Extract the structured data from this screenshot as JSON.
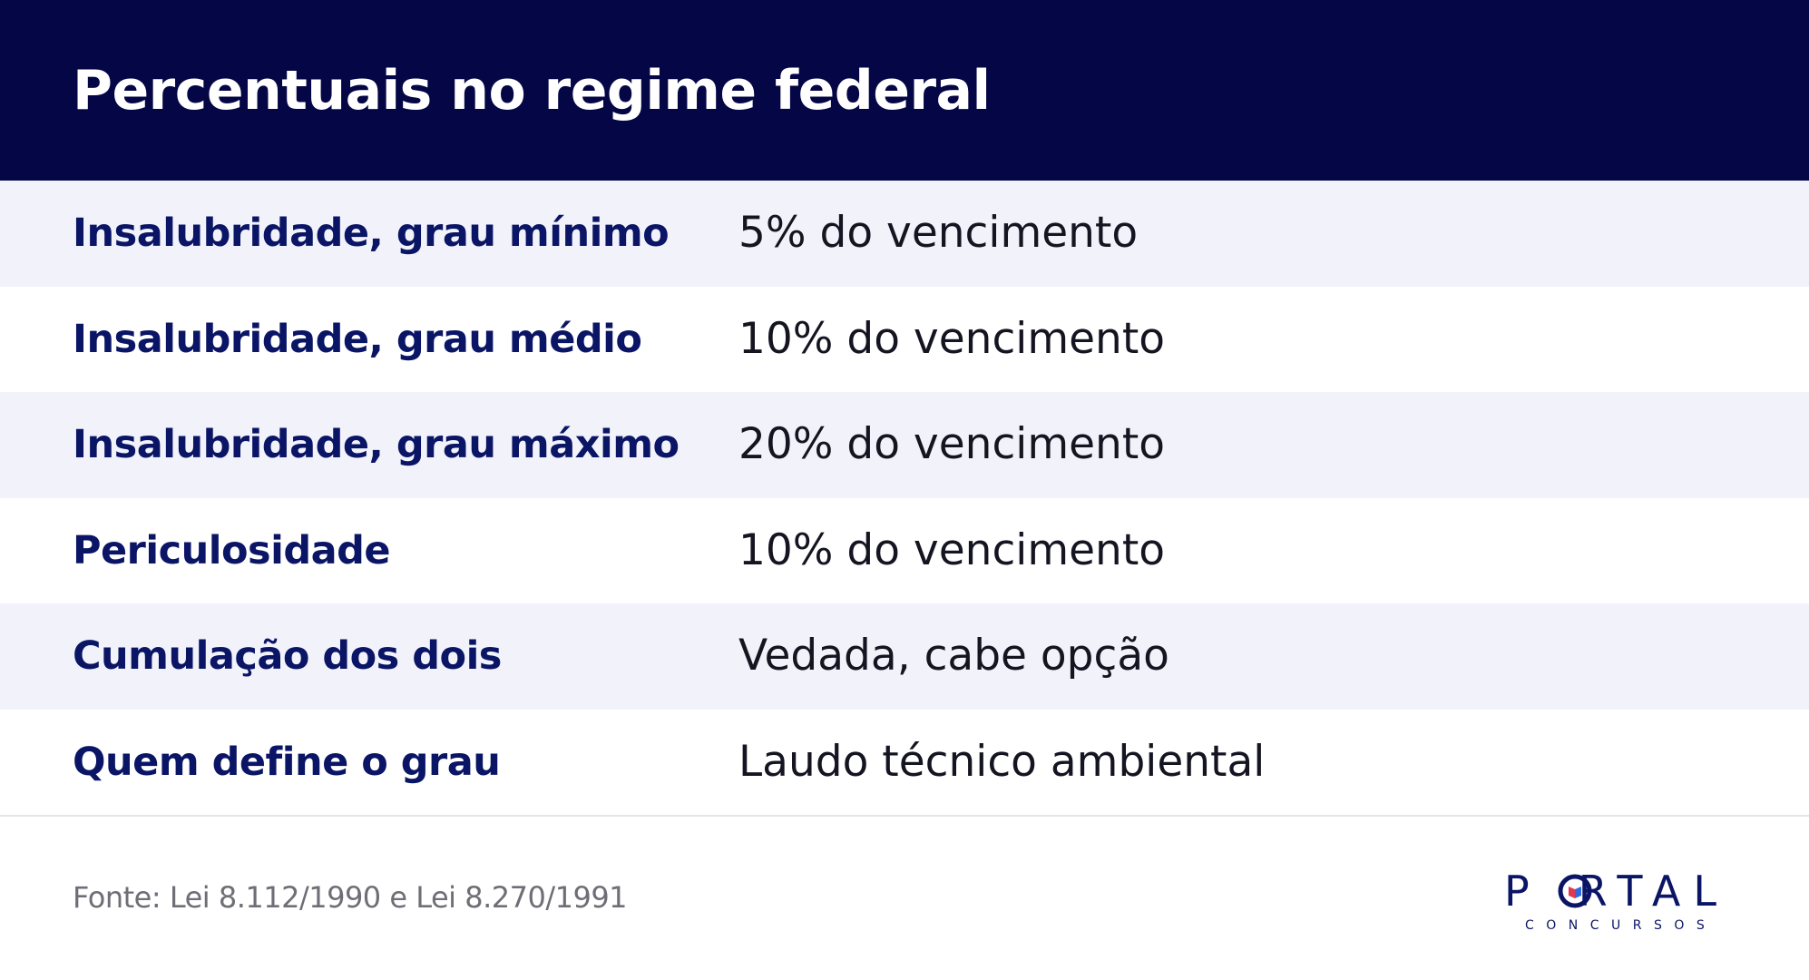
{
  "header": {
    "title": "Percentuais no regime federal"
  },
  "rows": [
    {
      "label": "Insalubridade, grau mínimo",
      "value": "5% do vencimento"
    },
    {
      "label": "Insalubridade, grau médio",
      "value": "10% do vencimento"
    },
    {
      "label": "Insalubridade, grau máximo",
      "value": "20% do vencimento"
    },
    {
      "label": "Periculosidade",
      "value": "10% do vencimento"
    },
    {
      "label": "Cumulação dos dois",
      "value": "Vedada, cabe opção"
    },
    {
      "label": "Quem define o grau",
      "value": "Laudo técnico ambiental"
    }
  ],
  "footer": {
    "source": "Fonte: Lei 8.112/1990 e Lei 8.270/1991",
    "logo_main_left": "P",
    "logo_main_right": "RTAL",
    "logo_sub": "CONCURSOS"
  },
  "colors": {
    "header_bg": "#040645",
    "label_text": "#0b1566",
    "row_alt_bg": "#f2f3fa",
    "logo_accent_red": "#e2384d",
    "logo_accent_blue": "#2f6ae0"
  }
}
